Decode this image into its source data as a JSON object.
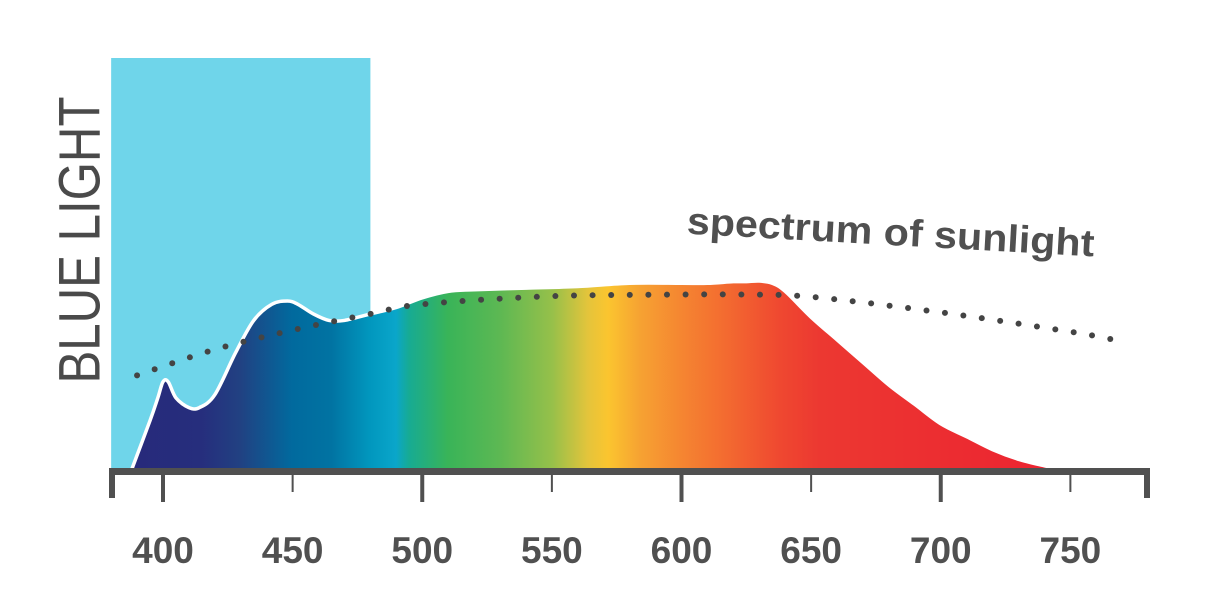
{
  "chart_data": {
    "type": "area",
    "title": "",
    "xlabel": "",
    "ylabel": "BLUE LIGHT",
    "xlim": [
      380,
      780
    ],
    "ylim": [
      0,
      100
    ],
    "x_ticks": [
      400,
      450,
      500,
      550,
      600,
      650,
      700,
      750
    ],
    "highlight_band": {
      "label": "BLUE LIGHT",
      "x_range": [
        380,
        480
      ],
      "color": "#6fd5ea"
    },
    "series": [
      {
        "type": "area",
        "x": [
          388,
          395,
          398,
          400,
          402,
          405,
          410,
          414,
          420,
          428,
          435,
          442,
          448,
          452,
          458,
          464,
          470,
          480,
          490,
          500,
          510,
          520,
          540,
          560,
          580,
          600,
          610,
          620,
          625,
          630,
          635,
          640,
          650,
          660,
          670,
          680,
          690,
          700,
          710,
          720,
          730,
          740,
          746
        ],
        "y": [
          0,
          15,
          22,
          27,
          27,
          22,
          19,
          19,
          23,
          36,
          46,
          51,
          52,
          51,
          48,
          46,
          46,
          48,
          50,
          53,
          55,
          55.5,
          56,
          56.5,
          57.5,
          57.5,
          57.5,
          58,
          58,
          58.2,
          57.5,
          55,
          47,
          40,
          33,
          26,
          20,
          14,
          10,
          6,
          3,
          1,
          0
        ],
        "fill": "visible-spectrum-gradient"
      },
      {
        "type": "line",
        "annotation": "spectrum of sunlight",
        "x": [
          390,
          420,
          450,
          480,
          500,
          550,
          600,
          625,
          650,
          700,
          750,
          770
        ],
        "y": [
          29,
          37,
          43,
          48,
          51,
          53.5,
          54,
          54,
          53.3,
          48.5,
          42.5,
          39.5
        ],
        "style": "dotted",
        "color": "#444444"
      }
    ],
    "annotations": [
      {
        "text": "spectrum of sunlight"
      }
    ],
    "grid": false,
    "colors": {
      "highlight": "#6fd5ea",
      "axis": "#505050",
      "tick_label": "#505050",
      "sunlight_line": "#444444",
      "outline": "#ffffff"
    }
  }
}
